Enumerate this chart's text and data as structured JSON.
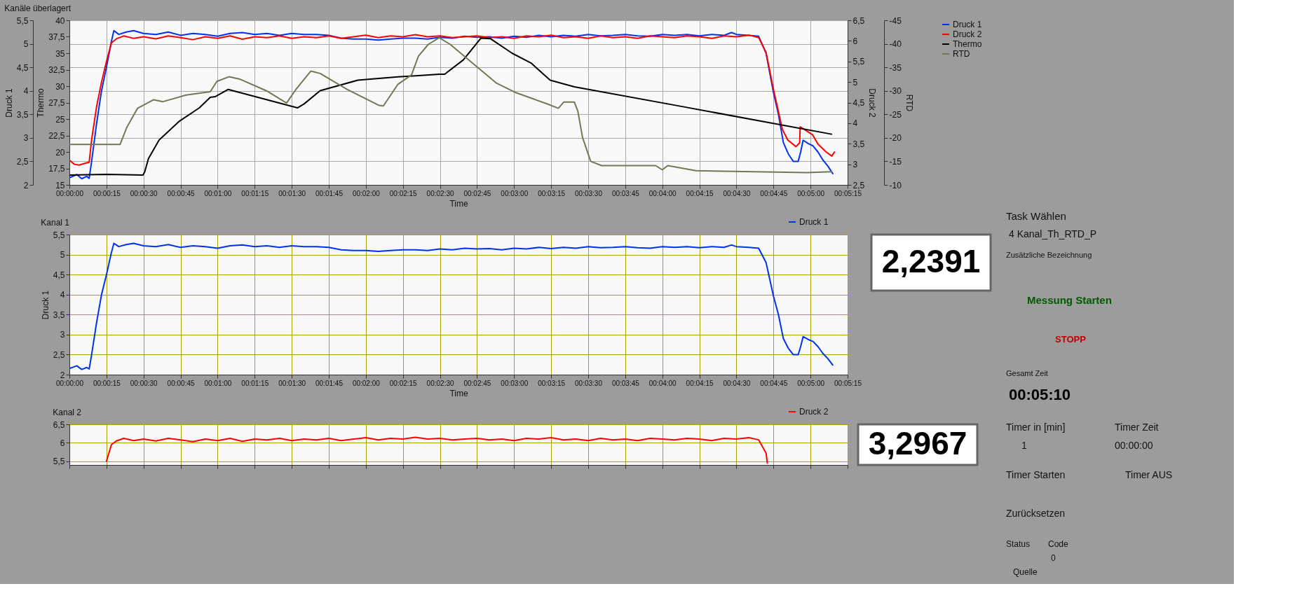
{
  "chart_data": [
    {
      "type": "line",
      "title": "Kanäle überlagert",
      "xlabel": "Time",
      "ylabel": "Druck 1",
      "y2label": "Thermo",
      "y3label": "Druck 2",
      "xlim": [
        0,
        315
      ],
      "xticks": [
        {
          "value": 0,
          "label": "00:00:00"
        },
        {
          "value": 15,
          "label": "00:00:15"
        },
        {
          "value": 30,
          "label": "00:00:30"
        },
        {
          "value": 45,
          "label": "00:00:45"
        },
        {
          "value": 60,
          "label": "00:01:00"
        },
        {
          "value": 75,
          "label": "00:01:15"
        },
        {
          "value": 90,
          "label": "00:01:30"
        },
        {
          "value": 105,
          "label": "00:01:45"
        },
        {
          "value": 120,
          "label": "00:02:00"
        },
        {
          "value": 135,
          "label": "00:02:15"
        },
        {
          "value": 150,
          "label": "00:02:30"
        },
        {
          "value": 165,
          "label": "00:02:45"
        },
        {
          "value": 180,
          "label": "00:03:00"
        },
        {
          "value": 195,
          "label": "00:03:15"
        },
        {
          "value": 210,
          "label": "00:03:30"
        },
        {
          "value": 225,
          "label": "00:03:45"
        },
        {
          "value": 240,
          "label": "00:04:00"
        },
        {
          "value": 255,
          "label": "00:04:15"
        },
        {
          "value": 270,
          "label": "00:04:30"
        },
        {
          "value": 285,
          "label": "00:04:45"
        },
        {
          "value": 300,
          "label": "00:05:00"
        },
        {
          "value": 315,
          "label": "00:05:15"
        }
      ],
      "ylim": [
        2,
        5.5
      ],
      "yticks": [
        2,
        {
          "value": 2.5,
          "label": "2,5"
        },
        3,
        {
          "value": 3.5,
          "label": "3,5"
        },
        4,
        {
          "value": 4.5,
          "label": "4,5"
        },
        5,
        {
          "value": 5.5,
          "label": "5,5"
        }
      ],
      "y2lim": [
        15,
        40
      ],
      "y2ticks": [
        15,
        {
          "value": 17.5,
          "label": "17,5"
        },
        20,
        {
          "value": 22.5,
          "label": "22,5"
        },
        25,
        {
          "value": 27.5,
          "label": "27,5"
        },
        30,
        {
          "value": 32.5,
          "label": "32,5"
        },
        35,
        {
          "value": 37.5,
          "label": "37,5"
        },
        40
      ],
      "y3lim": [
        2.5,
        6.5
      ],
      "y3ticks": [
        {
          "value": 2.5,
          "label": "2,5"
        },
        3,
        {
          "value": 3.5,
          "label": "3,5"
        },
        4,
        {
          "value": 4.5,
          "label": "4,5"
        },
        5,
        {
          "value": 5.5,
          "label": "5,5"
        },
        6,
        {
          "value": 6.5,
          "label": "6,5"
        }
      ],
      "grid": true,
      "legend": "right",
      "series": [
        {
          "name": "Druck 1",
          "color": "#0033ee",
          "axis": "y",
          "x": [
            0,
            3,
            5,
            7,
            8,
            9,
            11,
            13,
            15,
            17,
            18,
            20,
            23,
            26,
            30,
            35,
            40,
            45,
            50,
            55,
            60,
            65,
            70,
            75,
            80,
            85,
            90,
            95,
            100,
            105,
            110,
            115,
            120,
            125,
            130,
            135,
            140,
            145,
            150,
            155,
            160,
            165,
            170,
            175,
            180,
            185,
            190,
            195,
            200,
            205,
            210,
            215,
            220,
            225,
            230,
            235,
            240,
            245,
            250,
            255,
            260,
            265,
            268,
            270,
            275,
            279,
            282,
            285,
            287,
            289,
            291,
            293,
            295,
            296,
            297,
            299,
            301,
            303,
            305,
            307,
            309
          ],
          "values": [
            2.15,
            2.22,
            2.13,
            2.18,
            2.14,
            2.5,
            3.3,
            4.0,
            4.5,
            5.05,
            5.28,
            5.2,
            5.25,
            5.28,
            5.22,
            5.2,
            5.25,
            5.18,
            5.22,
            5.2,
            5.16,
            5.22,
            5.24,
            5.2,
            5.22,
            5.18,
            5.22,
            5.2,
            5.2,
            5.18,
            5.12,
            5.1,
            5.1,
            5.08,
            5.1,
            5.12,
            5.12,
            5.1,
            5.14,
            5.12,
            5.16,
            5.14,
            5.15,
            5.12,
            5.16,
            5.14,
            5.18,
            5.15,
            5.18,
            5.16,
            5.2,
            5.17,
            5.18,
            5.2,
            5.17,
            5.16,
            5.2,
            5.18,
            5.2,
            5.17,
            5.2,
            5.18,
            5.24,
            5.2,
            5.18,
            5.16,
            4.8,
            3.96,
            3.5,
            2.9,
            2.66,
            2.5,
            2.5,
            2.7,
            2.95,
            2.88,
            2.83,
            2.7,
            2.53,
            2.4,
            2.24
          ]
        },
        {
          "name": "Druck 2",
          "color": "#ff0000",
          "axis": "y3",
          "x": [
            0,
            2,
            4,
            6,
            8,
            9,
            11,
            13,
            15,
            17,
            19,
            22,
            26,
            30,
            35,
            40,
            45,
            50,
            55,
            60,
            65,
            70,
            75,
            80,
            85,
            90,
            95,
            100,
            105,
            110,
            115,
            120,
            125,
            130,
            135,
            140,
            145,
            150,
            155,
            160,
            165,
            170,
            175,
            180,
            185,
            190,
            195,
            200,
            205,
            210,
            215,
            220,
            225,
            230,
            235,
            240,
            245,
            250,
            255,
            260,
            265,
            270,
            275,
            279,
            282,
            285,
            288.6,
            290.8,
            294.1,
            295.6,
            295.8,
            297.4,
            300.8,
            303,
            306.3,
            308.6,
            309.7
          ],
          "values": [
            3.1,
            3.0,
            2.98,
            3.02,
            3.05,
            3.6,
            4.4,
            5.0,
            5.5,
            5.95,
            6.05,
            6.12,
            6.06,
            6.1,
            6.05,
            6.12,
            6.08,
            6.03,
            6.1,
            6.06,
            6.12,
            6.04,
            6.1,
            6.08,
            6.12,
            6.06,
            6.1,
            6.08,
            6.12,
            6.06,
            6.1,
            6.14,
            6.08,
            6.12,
            6.1,
            6.15,
            6.1,
            6.12,
            6.08,
            6.1,
            6.12,
            6.08,
            6.1,
            6.06,
            6.12,
            6.1,
            6.14,
            6.08,
            6.1,
            6.06,
            6.12,
            6.08,
            6.1,
            6.06,
            6.12,
            6.1,
            6.08,
            6.12,
            6.1,
            6.06,
            6.12,
            6.1,
            6.14,
            6.08,
            5.72,
            4.82,
            3.85,
            3.59,
            3.43,
            3.52,
            3.91,
            3.85,
            3.72,
            3.49,
            3.3,
            3.2,
            3.3
          ]
        },
        {
          "name": "Thermo",
          "color": "#000000",
          "axis": "y2",
          "x": [
            0,
            15,
            29.8,
            30.5,
            32,
            36.3,
            44.6,
            52.6,
            57,
            59,
            64.3,
            92.3,
            95,
            101.5,
            116.7,
            133,
            141.3,
            149.7,
            151.9,
            159.5,
            166.6,
            170.5,
            179.2,
            186.9,
            194.6,
            204.4,
            248,
            308.5
          ],
          "values": [
            16.5,
            16.6,
            16.5,
            17.0,
            19.0,
            21.8,
            24.7,
            26.7,
            28.3,
            28.4,
            29.5,
            26.7,
            27.3,
            29.3,
            30.9,
            31.4,
            31.6,
            31.8,
            31.8,
            34.0,
            37.3,
            37.2,
            35.0,
            33.5,
            30.9,
            29.9,
            26.9,
            22.7
          ]
        }
      ]
    },
    {
      "type": "line",
      "ylabel": "RTD",
      "tick_labels": "y",
      "xlim": [
        0,
        315
      ],
      "ylim": [
        -10,
        -45
      ],
      "yticks": [
        -10,
        -15,
        -20,
        -25,
        -30,
        -35,
        -40,
        -45
      ],
      "legend": "right",
      "series": [
        {
          "name": "RTD",
          "color": "#6e7a55",
          "x": [
            0,
            20.5,
            23.3,
            27.6,
            34.1,
            37.9,
            47.2,
            57,
            59.7,
            64.6,
            68.9,
            79.8,
            87.9,
            91.7,
            97.7,
            101.5,
            112.4,
            125.4,
            127.1,
            133,
            138.5,
            141.3,
            145.3,
            149.7,
            154.1,
            165,
            172.7,
            180.3,
            193.5,
            197.9,
            200.1,
            204.4,
            205.8,
            207.7,
            211,
            215.4,
            237.3,
            240,
            242.2,
            253.6,
            298.6,
            308.5
          ],
          "values": [
            -18.6,
            -18.6,
            -22.3,
            -26.3,
            -28.1,
            -27.7,
            -29.1,
            -29.8,
            -32.0,
            -33.0,
            -32.5,
            -30.0,
            -27.4,
            -30.3,
            -34.2,
            -33.7,
            -30.3,
            -26.9,
            -26.8,
            -31.4,
            -33.4,
            -37.4,
            -39.9,
            -41.3,
            -39.9,
            -35.1,
            -31.7,
            -29.7,
            -27.2,
            -26.3,
            -27.6,
            -27.6,
            -25.7,
            -20.1,
            -15.0,
            -14.1,
            -14.1,
            -13.2,
            -14.1,
            -13.0,
            -12.6,
            -12.8
          ]
        }
      ]
    },
    {
      "type": "line",
      "title": "Kanal 1",
      "xlabel": "Time",
      "ylabel": "Druck 1",
      "xlim": [
        0,
        315
      ],
      "xticks": [
        {
          "value": 0,
          "label": "00:00:00"
        },
        {
          "value": 15,
          "label": "00:00:15"
        },
        {
          "value": 30,
          "label": "00:00:30"
        },
        {
          "value": 45,
          "label": "00:00:45"
        },
        {
          "value": 60,
          "label": "00:01:00"
        },
        {
          "value": 75,
          "label": "00:01:15"
        },
        {
          "value": 90,
          "label": "00:01:30"
        },
        {
          "value": 105,
          "label": "00:01:45"
        },
        {
          "value": 120,
          "label": "00:02:00"
        },
        {
          "value": 135,
          "label": "00:02:15"
        },
        {
          "value": 150,
          "label": "00:02:30"
        },
        {
          "value": 165,
          "label": "00:02:45"
        },
        {
          "value": 180,
          "label": "00:03:00"
        },
        {
          "value": 195,
          "label": "00:03:15"
        },
        {
          "value": 210,
          "label": "00:03:30"
        },
        {
          "value": 225,
          "label": "00:03:45"
        },
        {
          "value": 240,
          "label": "00:04:00"
        },
        {
          "value": 255,
          "label": "00:04:15"
        },
        {
          "value": 270,
          "label": "00:04:30"
        },
        {
          "value": 285,
          "label": "00:04:45"
        },
        {
          "value": 300,
          "label": "00:05:00"
        },
        {
          "value": 315,
          "label": "00:05:15"
        }
      ],
      "ylim": [
        2,
        5.5
      ],
      "yticks": [
        2,
        {
          "value": 2.5,
          "label": "2,5"
        },
        3,
        {
          "value": 3.5,
          "label": "3,5"
        },
        4,
        {
          "value": 4.5,
          "label": "4,5"
        },
        5,
        {
          "value": 5.5,
          "label": "5,5"
        }
      ],
      "grid": true,
      "legend": "top right",
      "series": [
        {
          "name": "Druck 1",
          "color": "#0033ee",
          "x": [
            0,
            3,
            5,
            7,
            8,
            9,
            11,
            13,
            15,
            17,
            18,
            20,
            23,
            26,
            30,
            35,
            40,
            45,
            50,
            55,
            60,
            65,
            70,
            75,
            80,
            85,
            90,
            95,
            100,
            105,
            110,
            115,
            120,
            125,
            130,
            135,
            140,
            145,
            150,
            155,
            160,
            165,
            170,
            175,
            180,
            185,
            190,
            195,
            200,
            205,
            210,
            215,
            220,
            225,
            230,
            235,
            240,
            245,
            250,
            255,
            260,
            265,
            268,
            270,
            275,
            279,
            282,
            285,
            287,
            289,
            291,
            293,
            295,
            296,
            297,
            299,
            301,
            303,
            305,
            307,
            309
          ],
          "values": [
            2.15,
            2.22,
            2.13,
            2.18,
            2.14,
            2.5,
            3.3,
            4.0,
            4.5,
            5.05,
            5.28,
            5.2,
            5.25,
            5.28,
            5.22,
            5.2,
            5.25,
            5.18,
            5.22,
            5.2,
            5.16,
            5.22,
            5.24,
            5.2,
            5.22,
            5.18,
            5.22,
            5.2,
            5.2,
            5.18,
            5.12,
            5.1,
            5.1,
            5.08,
            5.1,
            5.12,
            5.12,
            5.1,
            5.14,
            5.12,
            5.16,
            5.14,
            5.15,
            5.12,
            5.16,
            5.14,
            5.18,
            5.15,
            5.18,
            5.16,
            5.2,
            5.17,
            5.18,
            5.2,
            5.17,
            5.16,
            5.2,
            5.18,
            5.2,
            5.17,
            5.2,
            5.18,
            5.24,
            5.2,
            5.18,
            5.16,
            4.8,
            3.96,
            3.5,
            2.9,
            2.66,
            2.5,
            2.5,
            2.7,
            2.95,
            2.88,
            2.83,
            2.7,
            2.53,
            2.4,
            2.24
          ]
        }
      ]
    },
    {
      "type": "line",
      "title": "Kanal 2",
      "tick_labels": "y",
      "xlim": [
        0,
        315
      ],
      "xticks": [
        {
          "value": 0,
          "label": null
        },
        {
          "value": 15,
          "label": null
        },
        {
          "value": 30,
          "label": null
        },
        {
          "value": 45,
          "label": null
        },
        {
          "value": 60,
          "label": null
        },
        {
          "value": 75,
          "label": null
        },
        {
          "value": 90,
          "label": null
        },
        {
          "value": 105,
          "label": null
        },
        {
          "value": 120,
          "label": null
        },
        {
          "value": 135,
          "label": null
        },
        {
          "value": 150,
          "label": null
        },
        {
          "value": 165,
          "label": null
        },
        {
          "value": 180,
          "label": null
        },
        {
          "value": 195,
          "label": null
        },
        {
          "value": 210,
          "label": null
        },
        {
          "value": 225,
          "label": null
        },
        {
          "value": 240,
          "label": null
        },
        {
          "value": 255,
          "label": null
        },
        {
          "value": 270,
          "label": null
        },
        {
          "value": 285,
          "label": null
        },
        {
          "value": 300,
          "label": null
        },
        {
          "value": 315,
          "label": null
        }
      ],
      "ylim": [
        5.4,
        6.5
      ],
      "yticks": [
        {
          "value": 5.5,
          "label": "5,5"
        },
        6,
        {
          "value": 6.5,
          "label": "6,5"
        }
      ],
      "grid": true,
      "legend": "top right",
      "series": [
        {
          "name": "Druck 2",
          "color": "#ff0000",
          "x": [
            15,
            17,
            19,
            22,
            26,
            30,
            35,
            40,
            45,
            50,
            55,
            60,
            65,
            70,
            75,
            80,
            85,
            90,
            95,
            100,
            105,
            110,
            115,
            120,
            125,
            130,
            135,
            140,
            145,
            150,
            155,
            160,
            165,
            170,
            175,
            180,
            185,
            190,
            195,
            200,
            205,
            210,
            215,
            220,
            225,
            230,
            235,
            240,
            245,
            250,
            255,
            260,
            265,
            270,
            275,
            279,
            282,
            282.5
          ],
          "values": [
            5.5,
            5.95,
            6.05,
            6.12,
            6.06,
            6.1,
            6.05,
            6.12,
            6.08,
            6.03,
            6.1,
            6.06,
            6.12,
            6.04,
            6.1,
            6.08,
            6.12,
            6.06,
            6.1,
            6.08,
            6.12,
            6.06,
            6.1,
            6.14,
            6.08,
            6.12,
            6.1,
            6.15,
            6.1,
            6.12,
            6.08,
            6.1,
            6.12,
            6.08,
            6.1,
            6.06,
            6.12,
            6.1,
            6.14,
            6.08,
            6.1,
            6.06,
            6.12,
            6.08,
            6.1,
            6.06,
            6.12,
            6.1,
            6.08,
            6.12,
            6.1,
            6.06,
            6.12,
            6.1,
            6.14,
            6.08,
            5.72,
            5.45
          ]
        }
      ]
    },
    {
      "type": "other",
      "annotations": [
        "2,2391",
        "3,2967",
        "Task Wählen",
        "4 Kanal_Th_RTD_P",
        "Zusätzliche Bezeichnung",
        "Messung Starten",
        "STOPP",
        "Gesamt Zeit",
        "00:05:10",
        "Timer in [min]",
        "1",
        "Timer Zeit",
        "00:00:00",
        "Timer Starten",
        "Timer AUS",
        "Zurücksetzen",
        "Status",
        "Code",
        "0",
        "Quelle"
      ]
    }
  ]
}
